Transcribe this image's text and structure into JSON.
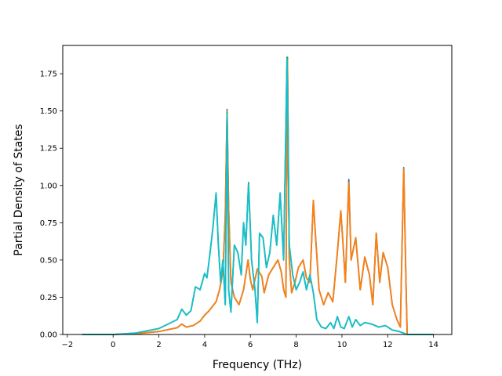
{
  "chart_data": {
    "type": "line",
    "title": "",
    "xlabel": "Frequency (THz)",
    "ylabel": "Partial Density of States",
    "xlim": [
      -2.2,
      14.8
    ],
    "ylim": [
      0,
      1.94
    ],
    "x_ticks": [
      -2,
      0,
      2,
      4,
      6,
      8,
      10,
      12,
      14
    ],
    "x_tick_labels": [
      "−2",
      "0",
      "2",
      "4",
      "6",
      "8",
      "10",
      "12",
      "14"
    ],
    "y_ticks": [
      0.0,
      0.25,
      0.5,
      0.75,
      1.0,
      1.25,
      1.5,
      1.75
    ],
    "y_tick_labels": [
      "0.00",
      "0.25",
      "0.50",
      "0.75",
      "1.00",
      "1.25",
      "1.50",
      "1.75"
    ],
    "grid": false,
    "legend": "none",
    "series": [
      {
        "color": "#1f77b4",
        "points": [
          [
            -1.35,
            0
          ],
          [
            0,
            0.0
          ],
          [
            1.0,
            0.005
          ],
          [
            2.0,
            0.02
          ],
          [
            2.8,
            0.045
          ],
          [
            3.0,
            0.07
          ],
          [
            3.2,
            0.05
          ],
          [
            3.5,
            0.06
          ],
          [
            3.8,
            0.09
          ],
          [
            4.0,
            0.13
          ],
          [
            4.2,
            0.16
          ],
          [
            4.5,
            0.22
          ],
          [
            4.65,
            0.3
          ],
          [
            4.8,
            0.42
          ],
          [
            4.9,
            0.8
          ],
          [
            4.98,
            1.51
          ],
          [
            5.05,
            0.85
          ],
          [
            5.15,
            0.35
          ],
          [
            5.3,
            0.25
          ],
          [
            5.5,
            0.2
          ],
          [
            5.7,
            0.3
          ],
          [
            5.9,
            0.5
          ],
          [
            6.0,
            0.37
          ],
          [
            6.1,
            0.3
          ],
          [
            6.3,
            0.44
          ],
          [
            6.5,
            0.39
          ],
          [
            6.6,
            0.28
          ],
          [
            6.8,
            0.4
          ],
          [
            7.0,
            0.45
          ],
          [
            7.2,
            0.5
          ],
          [
            7.35,
            0.42
          ],
          [
            7.45,
            0.3
          ],
          [
            7.55,
            0.25
          ],
          [
            7.62,
            1.86
          ],
          [
            7.7,
            0.5
          ],
          [
            7.8,
            0.28
          ],
          [
            7.95,
            0.35
          ],
          [
            8.1,
            0.45
          ],
          [
            8.3,
            0.5
          ],
          [
            8.45,
            0.38
          ],
          [
            8.6,
            0.35
          ],
          [
            8.75,
            0.9
          ],
          [
            8.85,
            0.65
          ],
          [
            9.0,
            0.3
          ],
          [
            9.2,
            0.2
          ],
          [
            9.4,
            0.28
          ],
          [
            9.6,
            0.22
          ],
          [
            9.8,
            0.55
          ],
          [
            9.95,
            0.83
          ],
          [
            10.05,
            0.6
          ],
          [
            10.15,
            0.35
          ],
          [
            10.3,
            1.04
          ],
          [
            10.4,
            0.5
          ],
          [
            10.6,
            0.65
          ],
          [
            10.8,
            0.3
          ],
          [
            11.0,
            0.52
          ],
          [
            11.2,
            0.4
          ],
          [
            11.35,
            0.2
          ],
          [
            11.5,
            0.68
          ],
          [
            11.65,
            0.35
          ],
          [
            11.8,
            0.55
          ],
          [
            12.0,
            0.45
          ],
          [
            12.2,
            0.2
          ],
          [
            12.4,
            0.1
          ],
          [
            12.55,
            0.05
          ],
          [
            12.7,
            1.12
          ],
          [
            12.8,
            0.35
          ],
          [
            12.85,
            0
          ],
          [
            14.0,
            0
          ]
        ]
      },
      {
        "color": "#ff7f0e",
        "points": [
          [
            -1.35,
            0
          ],
          [
            0,
            0.0
          ],
          [
            1.0,
            0.005
          ],
          [
            2.0,
            0.02
          ],
          [
            2.8,
            0.045
          ],
          [
            3.0,
            0.07
          ],
          [
            3.2,
            0.05
          ],
          [
            3.5,
            0.06
          ],
          [
            3.8,
            0.09
          ],
          [
            4.0,
            0.13
          ],
          [
            4.2,
            0.16
          ],
          [
            4.5,
            0.22
          ],
          [
            4.65,
            0.3
          ],
          [
            4.8,
            0.42
          ],
          [
            4.9,
            0.8
          ],
          [
            4.98,
            1.5
          ],
          [
            5.05,
            0.85
          ],
          [
            5.15,
            0.35
          ],
          [
            5.3,
            0.25
          ],
          [
            5.5,
            0.2
          ],
          [
            5.7,
            0.3
          ],
          [
            5.9,
            0.5
          ],
          [
            6.0,
            0.37
          ],
          [
            6.1,
            0.3
          ],
          [
            6.3,
            0.44
          ],
          [
            6.5,
            0.39
          ],
          [
            6.6,
            0.28
          ],
          [
            6.8,
            0.4
          ],
          [
            7.0,
            0.45
          ],
          [
            7.2,
            0.5
          ],
          [
            7.35,
            0.42
          ],
          [
            7.45,
            0.3
          ],
          [
            7.55,
            0.25
          ],
          [
            7.62,
            1.85
          ],
          [
            7.7,
            0.5
          ],
          [
            7.8,
            0.28
          ],
          [
            7.95,
            0.35
          ],
          [
            8.1,
            0.45
          ],
          [
            8.3,
            0.5
          ],
          [
            8.45,
            0.38
          ],
          [
            8.6,
            0.35
          ],
          [
            8.75,
            0.9
          ],
          [
            8.85,
            0.65
          ],
          [
            9.0,
            0.3
          ],
          [
            9.2,
            0.2
          ],
          [
            9.4,
            0.28
          ],
          [
            9.6,
            0.22
          ],
          [
            9.8,
            0.55
          ],
          [
            9.95,
            0.83
          ],
          [
            10.05,
            0.6
          ],
          [
            10.15,
            0.35
          ],
          [
            10.3,
            1.02
          ],
          [
            10.4,
            0.5
          ],
          [
            10.6,
            0.65
          ],
          [
            10.8,
            0.3
          ],
          [
            11.0,
            0.52
          ],
          [
            11.2,
            0.4
          ],
          [
            11.35,
            0.2
          ],
          [
            11.5,
            0.68
          ],
          [
            11.65,
            0.35
          ],
          [
            11.8,
            0.55
          ],
          [
            12.0,
            0.45
          ],
          [
            12.2,
            0.2
          ],
          [
            12.4,
            0.1
          ],
          [
            12.55,
            0.05
          ],
          [
            12.7,
            1.11
          ],
          [
            12.8,
            0.35
          ],
          [
            12.85,
            0
          ],
          [
            14.0,
            0
          ]
        ]
      },
      {
        "color": "#2ca02c",
        "points": [
          [
            -1.35,
            0
          ],
          [
            0,
            0.0
          ],
          [
            1.0,
            0.01
          ],
          [
            2.0,
            0.04
          ],
          [
            2.8,
            0.1
          ],
          [
            3.0,
            0.17
          ],
          [
            3.2,
            0.13
          ],
          [
            3.4,
            0.16
          ],
          [
            3.6,
            0.32
          ],
          [
            3.8,
            0.3
          ],
          [
            4.0,
            0.41
          ],
          [
            4.1,
            0.38
          ],
          [
            4.2,
            0.5
          ],
          [
            4.35,
            0.7
          ],
          [
            4.5,
            0.95
          ],
          [
            4.6,
            0.6
          ],
          [
            4.7,
            0.35
          ],
          [
            4.8,
            0.5
          ],
          [
            4.9,
            0.2
          ],
          [
            4.98,
            1.49
          ],
          [
            5.05,
            0.3
          ],
          [
            5.15,
            0.15
          ],
          [
            5.3,
            0.6
          ],
          [
            5.45,
            0.55
          ],
          [
            5.6,
            0.4
          ],
          [
            5.7,
            0.75
          ],
          [
            5.8,
            0.6
          ],
          [
            5.92,
            1.02
          ],
          [
            6.05,
            0.5
          ],
          [
            6.2,
            0.3
          ],
          [
            6.3,
            0.08
          ],
          [
            6.4,
            0.68
          ],
          [
            6.55,
            0.65
          ],
          [
            6.7,
            0.45
          ],
          [
            6.85,
            0.55
          ],
          [
            7.0,
            0.8
          ],
          [
            7.15,
            0.6
          ],
          [
            7.3,
            0.95
          ],
          [
            7.45,
            0.5
          ],
          [
            7.6,
            1.86
          ],
          [
            7.7,
            0.6
          ],
          [
            7.85,
            0.4
          ],
          [
            8.0,
            0.3
          ],
          [
            8.15,
            0.35
          ],
          [
            8.3,
            0.42
          ],
          [
            8.45,
            0.3
          ],
          [
            8.6,
            0.4
          ],
          [
            8.75,
            0.28
          ],
          [
            8.9,
            0.1
          ],
          [
            9.1,
            0.05
          ],
          [
            9.3,
            0.04
          ],
          [
            9.5,
            0.08
          ],
          [
            9.65,
            0.04
          ],
          [
            9.8,
            0.12
          ],
          [
            9.95,
            0.05
          ],
          [
            10.1,
            0.04
          ],
          [
            10.3,
            0.12
          ],
          [
            10.45,
            0.05
          ],
          [
            10.6,
            0.1
          ],
          [
            10.8,
            0.06
          ],
          [
            11.0,
            0.08
          ],
          [
            11.3,
            0.07
          ],
          [
            11.6,
            0.05
          ],
          [
            11.9,
            0.06
          ],
          [
            12.2,
            0.03
          ],
          [
            12.5,
            0.02
          ],
          [
            12.85,
            0
          ],
          [
            14.0,
            0
          ]
        ]
      },
      {
        "color": "#17becf",
        "points": [
          [
            -1.35,
            0
          ],
          [
            0,
            0.0
          ],
          [
            1.0,
            0.01
          ],
          [
            2.0,
            0.04
          ],
          [
            2.8,
            0.1
          ],
          [
            3.0,
            0.17
          ],
          [
            3.2,
            0.13
          ],
          [
            3.4,
            0.16
          ],
          [
            3.6,
            0.32
          ],
          [
            3.8,
            0.3
          ],
          [
            4.0,
            0.41
          ],
          [
            4.1,
            0.38
          ],
          [
            4.2,
            0.5
          ],
          [
            4.35,
            0.7
          ],
          [
            4.5,
            0.95
          ],
          [
            4.6,
            0.6
          ],
          [
            4.7,
            0.35
          ],
          [
            4.8,
            0.5
          ],
          [
            4.9,
            0.2
          ],
          [
            4.98,
            1.48
          ],
          [
            5.05,
            0.3
          ],
          [
            5.15,
            0.15
          ],
          [
            5.3,
            0.6
          ],
          [
            5.45,
            0.55
          ],
          [
            5.6,
            0.4
          ],
          [
            5.7,
            0.75
          ],
          [
            5.8,
            0.6
          ],
          [
            5.92,
            1.01
          ],
          [
            6.05,
            0.5
          ],
          [
            6.2,
            0.3
          ],
          [
            6.3,
            0.08
          ],
          [
            6.4,
            0.68
          ],
          [
            6.55,
            0.65
          ],
          [
            6.7,
            0.45
          ],
          [
            6.85,
            0.55
          ],
          [
            7.0,
            0.8
          ],
          [
            7.15,
            0.6
          ],
          [
            7.3,
            0.95
          ],
          [
            7.45,
            0.5
          ],
          [
            7.6,
            1.85
          ],
          [
            7.7,
            0.6
          ],
          [
            7.85,
            0.4
          ],
          [
            8.0,
            0.3
          ],
          [
            8.15,
            0.35
          ],
          [
            8.3,
            0.42
          ],
          [
            8.45,
            0.3
          ],
          [
            8.6,
            0.4
          ],
          [
            8.75,
            0.28
          ],
          [
            8.9,
            0.1
          ],
          [
            9.1,
            0.05
          ],
          [
            9.3,
            0.04
          ],
          [
            9.5,
            0.08
          ],
          [
            9.65,
            0.04
          ],
          [
            9.8,
            0.12
          ],
          [
            9.95,
            0.05
          ],
          [
            10.1,
            0.04
          ],
          [
            10.3,
            0.12
          ],
          [
            10.45,
            0.05
          ],
          [
            10.6,
            0.1
          ],
          [
            10.8,
            0.06
          ],
          [
            11.0,
            0.08
          ],
          [
            11.3,
            0.07
          ],
          [
            11.6,
            0.05
          ],
          [
            11.9,
            0.06
          ],
          [
            12.2,
            0.03
          ],
          [
            12.5,
            0.02
          ],
          [
            12.85,
            0
          ],
          [
            14.0,
            0
          ]
        ]
      }
    ]
  }
}
